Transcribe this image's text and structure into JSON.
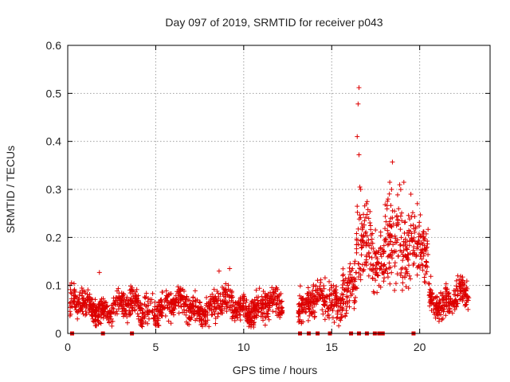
{
  "chart_data": {
    "type": "scatter",
    "title": "Day 097 of 2019, SRMTID for receiver p043",
    "xlabel": "GPS time / hours",
    "ylabel": "SRMTID / TECUs",
    "xlim": [
      0,
      24
    ],
    "ylim": [
      0,
      0.6
    ],
    "xticks": [
      0,
      5,
      10,
      15,
      20
    ],
    "xtick_labels": [
      "0",
      "5",
      "10",
      "15",
      "20"
    ],
    "yticks": [
      0,
      0.1,
      0.2,
      0.3,
      0.4,
      0.5,
      0.6
    ],
    "ytick_labels": [
      "0",
      "0.1",
      "0.2",
      "0.3",
      "0.4",
      "0.5",
      "0.6"
    ],
    "grid": true,
    "marker": "+",
    "color": "#dd0000",
    "series": [
      {
        "name": "SRMTID",
        "segments": [
          {
            "x_start": 0.1,
            "x_end": 12.2,
            "base": 0.055,
            "spread": 0.03
          },
          {
            "x_start": 13.1,
            "x_end": 15.6,
            "base": 0.065,
            "spread": 0.035
          },
          {
            "x_start": 15.6,
            "x_end": 16.4,
            "base": 0.1,
            "spread": 0.05
          },
          {
            "x_start": 16.4,
            "x_end": 17.3,
            "base": 0.18,
            "spread": 0.08
          },
          {
            "x_start": 17.3,
            "x_end": 18.0,
            "base": 0.15,
            "spread": 0.06
          },
          {
            "x_start": 18.0,
            "x_end": 19.0,
            "base": 0.2,
            "spread": 0.09
          },
          {
            "x_start": 19.0,
            "x_end": 20.5,
            "base": 0.17,
            "spread": 0.07
          },
          {
            "x_start": 20.5,
            "x_end": 22.8,
            "base": 0.075,
            "spread": 0.03
          }
        ],
        "peaks": [
          {
            "x": 16.55,
            "y": 0.512
          },
          {
            "x": 16.5,
            "y": 0.478
          },
          {
            "x": 16.45,
            "y": 0.41
          },
          {
            "x": 16.55,
            "y": 0.372
          },
          {
            "x": 16.6,
            "y": 0.305
          },
          {
            "x": 16.65,
            "y": 0.3
          },
          {
            "x": 18.45,
            "y": 0.357
          },
          {
            "x": 18.3,
            "y": 0.315
          },
          {
            "x": 19.1,
            "y": 0.315
          },
          {
            "x": 18.4,
            "y": 0.3
          },
          {
            "x": 19.5,
            "y": 0.29
          },
          {
            "x": 18.2,
            "y": 0.28
          },
          {
            "x": 1.8,
            "y": 0.127
          },
          {
            "x": 9.2,
            "y": 0.135
          },
          {
            "x": 8.6,
            "y": 0.13
          }
        ]
      },
      {
        "name": "zero-level",
        "x": [
          0.25,
          2.0,
          3.65,
          13.2,
          13.7,
          14.2,
          14.9,
          16.1,
          16.55,
          17.0,
          17.45,
          17.7,
          17.9,
          19.65
        ],
        "y": [
          0,
          0,
          0,
          0,
          0,
          0,
          0,
          0,
          0,
          0,
          0,
          0,
          0,
          0
        ]
      }
    ]
  }
}
